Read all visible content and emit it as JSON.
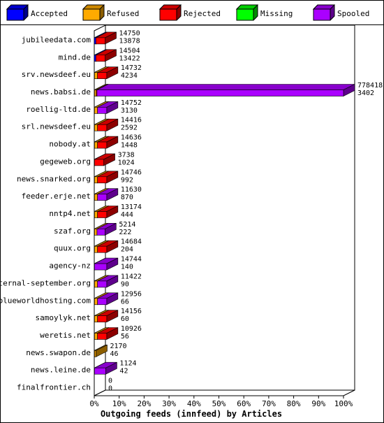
{
  "legend": [
    {
      "label": "Accepted",
      "color": "#0000ff"
    },
    {
      "label": "Refused",
      "color": "#ffaa00"
    },
    {
      "label": "Rejected",
      "color": "#ff0000"
    },
    {
      "label": "Missing",
      "color": "#00ff00"
    },
    {
      "label": "Spooled",
      "color": "#aa00ff"
    }
  ],
  "chart_data": {
    "type": "bar",
    "orientation": "horizontal",
    "stacked": true,
    "title": "Outgoing feeds (innfeed) by Articles",
    "x_tick_labels": [
      "0%",
      "10%",
      "20%",
      "30%",
      "40%",
      "50%",
      "60%",
      "70%",
      "80%",
      "90%",
      "100%"
    ],
    "xlim": [
      0,
      100
    ],
    "categories": [
      "jubileedata.com",
      "mind.de",
      "srv.newsdeef.eu",
      "news.babsi.de",
      "roellig-ltd.de",
      "srl.newsdeef.eu",
      "nobody.at",
      "gegeweb.org",
      "news.snarked.org",
      "feeder.erje.net",
      "nntp4.net",
      "szaf.org",
      "quux.org",
      "agency-nz",
      "eternal-september.org",
      "blueworldhosting.com",
      "samoylyk.net",
      "weretis.net",
      "news.swapon.de",
      "news.leine.de",
      "finalfrontier.ch"
    ],
    "label_top": [
      "14750",
      "14504",
      "14732",
      "778418",
      "14752",
      "14416",
      "14636",
      "3738",
      "14746",
      "11630",
      "13174",
      "5214",
      "14684",
      "14744",
      "11422",
      "12956",
      "14156",
      "10926",
      "2170",
      "1124",
      "0"
    ],
    "label_bottom": [
      "13878",
      "13422",
      "4234",
      "3402",
      "3130",
      "2592",
      "1448",
      "1024",
      "992",
      "870",
      "444",
      "222",
      "204",
      "140",
      "90",
      "66",
      "60",
      "56",
      "46",
      "42",
      "0"
    ],
    "series": [
      {
        "name": "Accepted",
        "color": "#0000ff",
        "values": [
          0.65,
          0.65,
          0.1,
          0.1,
          0.1,
          0.1,
          0.1,
          0.1,
          0.1,
          0.1,
          0.1,
          0.1,
          0.1,
          0.1,
          0.1,
          0.1,
          0.1,
          0.1,
          0.1,
          0.1,
          0
        ]
      },
      {
        "name": "Refused",
        "color": "#ffaa00",
        "values": [
          0,
          0,
          1.2,
          0.7,
          1.2,
          1.2,
          1.2,
          0,
          1.2,
          1.2,
          1.2,
          1.0,
          1.2,
          0,
          1.2,
          1.2,
          1.2,
          1.2,
          0.6,
          0,
          0
        ]
      },
      {
        "name": "Rejected",
        "color": "#ff0000",
        "values": [
          3.7,
          3.7,
          3.7,
          0.3,
          0,
          3.7,
          3.7,
          3.7,
          3.7,
          0,
          3.7,
          0,
          3.7,
          0,
          0,
          0,
          3.7,
          3.7,
          0,
          0,
          0
        ]
      },
      {
        "name": "Missing",
        "color": "#00ff00",
        "values": [
          0,
          0,
          0,
          0,
          0,
          0,
          0,
          0,
          0,
          0,
          0,
          0,
          0,
          0,
          0,
          0,
          0,
          0,
          0,
          0,
          0
        ]
      },
      {
        "name": "Spooled",
        "color": "#aa00ff",
        "values": [
          0,
          0,
          0,
          98.9,
          3.7,
          0,
          0,
          0,
          0,
          3.7,
          0,
          3.2,
          0,
          4.9,
          3.7,
          3.7,
          0,
          0,
          0,
          4.5,
          0
        ]
      }
    ]
  }
}
